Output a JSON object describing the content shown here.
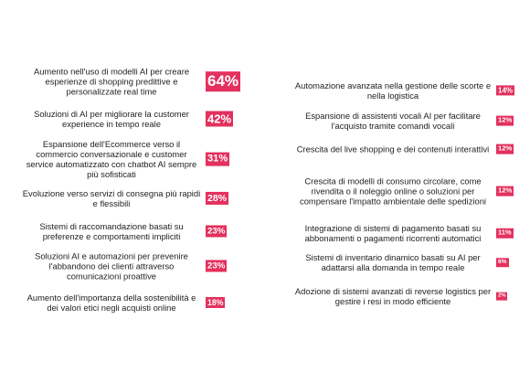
{
  "chart_data": [
    {
      "type": "badge",
      "color": "#e3305d",
      "categories": [
        "Aumento nell'uso di modelli AI per creare esperienze di shopping predittive e personalizzate real time",
        "Soluzioni di AI per migliorare la customer experience in tempo reale",
        "Espansione dell'Ecommerce verso il commercio conversazionale e customer service automatizzato con chatbot AI sempre più sofisticati",
        "Evoluzione verso servizi di consegna più rapidi e flessibili",
        "Sistemi di raccomandazione basati su preferenze e comportamenti impliciti",
        "Soluzioni AI e automazioni per prevenire l'abbandono dei clienti attraverso comunicazioni proattive",
        "Aumento dell'importanza della sostenibilità e dei valori etici negli acquisti online"
      ],
      "values": [
        64,
        42,
        31,
        28,
        23,
        23,
        18
      ],
      "value_labels": [
        "64%",
        "42%",
        "31%",
        "28%",
        "23%",
        "23%",
        "18%"
      ]
    },
    {
      "type": "badge",
      "color": "#e3305d",
      "categories": [
        "Automazione avanzata nella gestione delle scorte e nella logistica",
        "Espansione di assistenti vocali AI per facilitare l'acquisto tramite comandi vocali",
        "Crescita del live shopping e dei contenuti interattivi",
        "Crescita di modelli di consumo circolare, come rivendita o il noleggio online o soluzioni per compensare l'impatto ambientale delle spedizioni",
        "Integrazione di sistemi di pagamento basati su abbonamenti o pagamenti ricorrenti automatici",
        "Sistemi di inventario dinamico basati su AI per adattarsi alla domanda in tempo reale",
        "Adozione di sistemi avanzati di reverse logistics per gestire i resi in modo efficiente"
      ],
      "values": [
        14,
        12,
        12,
        12,
        11,
        6,
        2
      ],
      "value_labels": [
        "14%",
        "12%",
        "12%",
        "12%",
        "11%",
        "6%",
        "2%"
      ]
    }
  ]
}
